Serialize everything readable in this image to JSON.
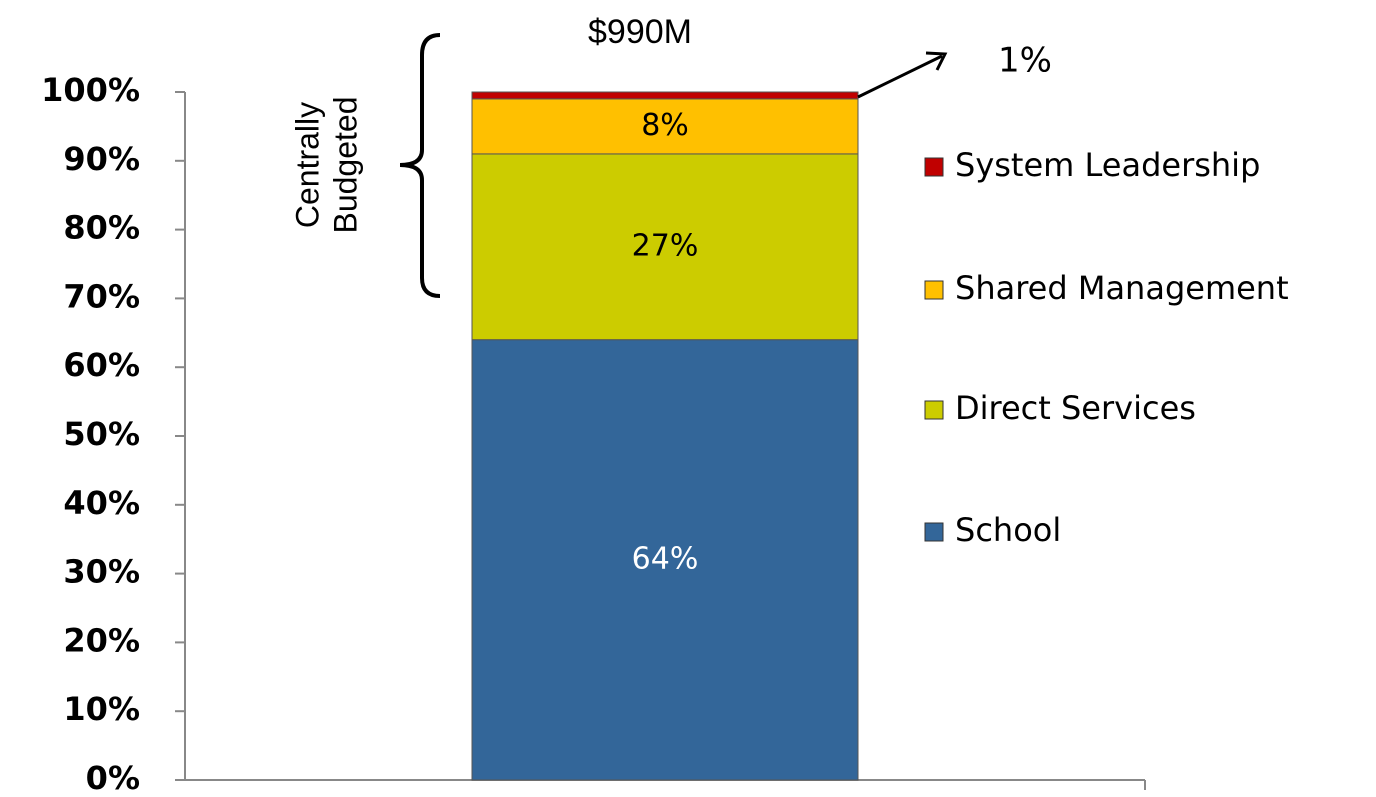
{
  "chart_data": {
    "type": "stacked_bar",
    "categories": [
      null
    ],
    "series": [
      {
        "name": "School",
        "color": "#336699",
        "values": [
          64
        ],
        "value_labels": [
          "64%"
        ],
        "label_color": "#ffffff"
      },
      {
        "name": "Direct Services",
        "color": "#cccc00",
        "values": [
          27
        ],
        "value_labels": [
          "27%"
        ],
        "label_color": "#000000"
      },
      {
        "name": "Shared Management",
        "color": "#ffc000",
        "values": [
          8
        ],
        "value_labels": [
          "8%"
        ],
        "label_color": "#000000"
      },
      {
        "name": "System Leadership",
        "color": "#c00000",
        "values": [
          1
        ],
        "value_labels": [
          "1%"
        ],
        "label_color": "#000000"
      }
    ],
    "ylim": [
      0,
      100
    ],
    "yticks": [
      {
        "value": 0,
        "label": "0%"
      },
      {
        "value": 10,
        "label": "10%"
      },
      {
        "value": 20,
        "label": "20%"
      },
      {
        "value": 30,
        "label": "30%"
      },
      {
        "value": 40,
        "label": "40%"
      },
      {
        "value": 50,
        "label": "50%"
      },
      {
        "value": 60,
        "label": "60%"
      },
      {
        "value": 70,
        "label": "70%"
      },
      {
        "value": 80,
        "label": "80%"
      },
      {
        "value": 90,
        "label": "90%"
      },
      {
        "value": 100,
        "label": "100%"
      }
    ],
    "annotations": {
      "total": "$990M",
      "bracket": [
        "Centrally",
        "Budgeted"
      ]
    },
    "legend": "right"
  }
}
